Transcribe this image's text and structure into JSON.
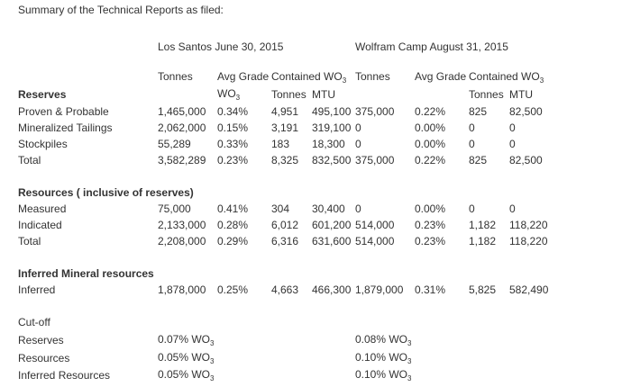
{
  "intro": "Summary of the Technical Reports as filed:",
  "properties": {
    "los_santos": "Los Santos June 30, 2015",
    "wolfram": "Wolfram Camp August 31, 2015"
  },
  "headers": {
    "tonnes": "Tonnes",
    "avg_grade": "Avg Grade",
    "contained": "Contained WO",
    "wo": "WO",
    "sub3": "3",
    "tonnes2": "Tonnes",
    "mtu": "MTU"
  },
  "sections": {
    "reserves": "Reserves",
    "resources": "Resources ( inclusive of reserves)",
    "inferred": "Inferred Mineral resources",
    "cutoff": "Cut-off"
  },
  "rows": {
    "proven": {
      "label": "Proven & Probable",
      "c": [
        "1,465,000",
        "0.34%",
        "4,951",
        "495,100",
        "375,000",
        "0.22%",
        "825",
        "82,500"
      ]
    },
    "tailings": {
      "label": "Mineralized Tailings",
      "c": [
        "2,062,000",
        "0.15%",
        "3,191",
        "319,100",
        "0",
        "0.00%",
        "0",
        "0"
      ]
    },
    "stockpiles": {
      "label": "Stockpiles",
      "c": [
        "55,289",
        "0.33%",
        "183",
        "18,300",
        "0",
        "0.00%",
        "0",
        "0"
      ]
    },
    "total1": {
      "label": "Total",
      "c": [
        "3,582,289",
        "0.23%",
        "8,325",
        "832,500",
        "375,000",
        "0.22%",
        "825",
        "82,500"
      ]
    },
    "measured": {
      "label": "Measured",
      "c": [
        "75,000",
        "0.41%",
        "304",
        "30,400",
        "0",
        "0.00%",
        "0",
        "0"
      ]
    },
    "indicated": {
      "label": "Indicated",
      "c": [
        "2,133,000",
        "0.28%",
        "6,012",
        "601,200",
        "514,000",
        "0.23%",
        "1,182",
        "118,220"
      ]
    },
    "total2": {
      "label": "Total",
      "c": [
        "2,208,000",
        "0.29%",
        "6,316",
        "631,600",
        "514,000",
        "0.23%",
        "1,182",
        "118,220"
      ]
    },
    "inferred": {
      "label": "Inferred",
      "c": [
        "1,878,000",
        "0.25%",
        "4,663",
        "466,300",
        "1,879,000",
        "0.31%",
        "5,825",
        "582,490"
      ]
    }
  },
  "cutoff": {
    "reserves": {
      "label": "Reserves",
      "ls": "0.07% WO",
      "wc": "0.08% WO"
    },
    "resources": {
      "label": "Resources",
      "ls": "0.05% WO",
      "wc": "0.10% WO"
    },
    "inferred": {
      "label": "Inferred Resources",
      "ls": "0.05% WO",
      "wc": "0.10% WO"
    }
  }
}
